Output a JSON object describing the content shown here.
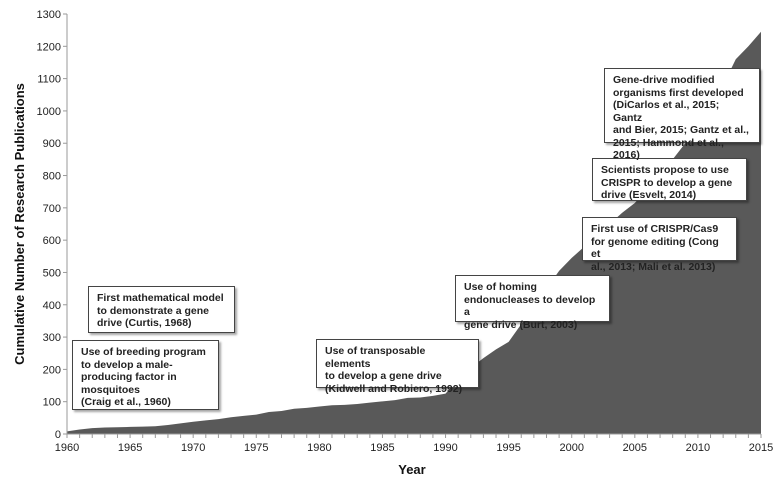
{
  "chart_data": {
    "type": "area",
    "title": "",
    "xlabel": "Year",
    "ylabel": "Cumulative Number of Research Publications",
    "xlim": [
      1960,
      2015
    ],
    "ylim": [
      0,
      1300
    ],
    "xticks": [
      1960,
      1965,
      1970,
      1975,
      1980,
      1985,
      1990,
      1995,
      2000,
      2005,
      2010,
      2015
    ],
    "yticks": [
      0,
      100,
      200,
      300,
      400,
      500,
      600,
      700,
      800,
      900,
      1000,
      1100,
      1200,
      1300
    ],
    "grid": false,
    "fill_color": "#595959",
    "x": [
      1960,
      1961,
      1962,
      1963,
      1964,
      1965,
      1966,
      1967,
      1968,
      1969,
      1970,
      1971,
      1972,
      1973,
      1974,
      1975,
      1976,
      1977,
      1978,
      1979,
      1980,
      1981,
      1982,
      1983,
      1984,
      1985,
      1986,
      1987,
      1988,
      1989,
      1990,
      1991,
      1992,
      1993,
      1994,
      1995,
      1996,
      1997,
      1998,
      1999,
      2000,
      2001,
      2002,
      2003,
      2004,
      2005,
      2006,
      2007,
      2008,
      2009,
      2010,
      2011,
      2012,
      2013,
      2014,
      2015
    ],
    "values": [
      8,
      14,
      18,
      20,
      21,
      22,
      23,
      24,
      28,
      33,
      38,
      42,
      46,
      52,
      56,
      60,
      68,
      71,
      78,
      81,
      85,
      89,
      90,
      93,
      97,
      101,
      105,
      112,
      113,
      118,
      125,
      170,
      205,
      235,
      262,
      285,
      340,
      400,
      450,
      505,
      545,
      580,
      615,
      650,
      685,
      715,
      760,
      800,
      850,
      900,
      950,
      1010,
      1080,
      1160,
      1200,
      1245
    ],
    "annotations": [
      {
        "text": "Use of breeding program\nto develop a male-\nproducing factor in\nmosquitoes\n(Craig et al., 1960)"
      },
      {
        "text": "First mathematical model\nto demonstrate a gene\ndrive (Curtis, 1968)"
      },
      {
        "text": "Use of transposable elements\nto develop a gene drive\n(Kidwell and Robiero, 1992)"
      },
      {
        "text": "Use of homing\nendonucleases to develop a\ngene drive (Burt, 2003)"
      },
      {
        "text": "First use of CRISPR/Cas9\nfor genome editing (Cong et\nal., 2013; Mali et al. 2013)"
      },
      {
        "text": "Scientists propose to use\nCRISPR to develop a gene\ndrive (Esvelt, 2014)"
      },
      {
        "text": "Gene-drive modified\norganisms first developed\n(DiCarlos et al., 2015; Gantz\nand Bier, 2015; Gantz et al.,\n2015; Hammond et al., 2016)"
      }
    ]
  }
}
